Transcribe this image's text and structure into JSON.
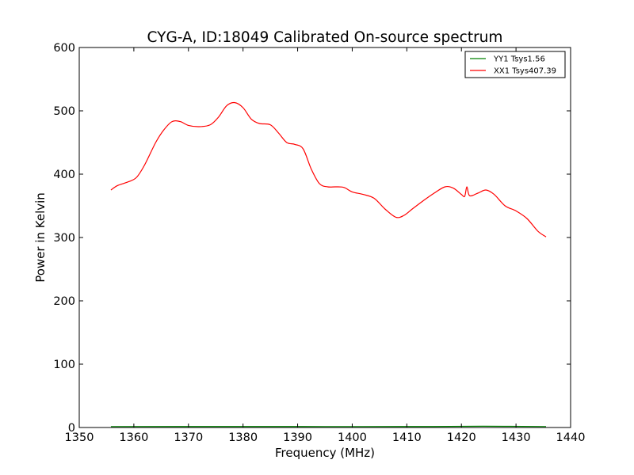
{
  "colors": {
    "xx1": "#ff0000",
    "yy1": "#008000",
    "axes": "#000000",
    "background": "#ffffff"
  },
  "chart_data": {
    "type": "line",
    "title": "CYG-A, ID:18049 Calibrated On-source spectrum",
    "xlabel": "Frequency (MHz)",
    "ylabel": "Power in Kelvin",
    "xlim": [
      1350,
      1440
    ],
    "ylim": [
      0,
      600
    ],
    "xticks": [
      "1350",
      "1360",
      "1370",
      "1380",
      "1390",
      "1400",
      "1410",
      "1420",
      "1430",
      "1440"
    ],
    "yticks": [
      "0",
      "100",
      "200",
      "300",
      "400",
      "500",
      "600"
    ],
    "grid": false,
    "legend_position": "top-right",
    "series": [
      {
        "name": "YY1 Tsys1.56",
        "color": "#008000",
        "x": [
          1355.8,
          1375,
          1395,
          1415,
          1424,
          1435.5
        ],
        "y": [
          1.5,
          1.6,
          1.5,
          1.6,
          2.0,
          1.5
        ]
      },
      {
        "name": "XX1 Tsys407.39",
        "color": "#ff0000",
        "x": [
          1355.8,
          1357,
          1359,
          1360.5,
          1362,
          1364,
          1365.5,
          1367,
          1368.5,
          1370,
          1372,
          1374,
          1375.5,
          1377,
          1378.5,
          1380,
          1381.5,
          1383,
          1385,
          1386.5,
          1388,
          1389.5,
          1391,
          1392.5,
          1394,
          1395.5,
          1397,
          1398.5,
          1400,
          1402,
          1404,
          1406,
          1408,
          1409.5,
          1411,
          1413,
          1415,
          1417,
          1418.5,
          1420,
          1420.6,
          1421,
          1421.5,
          1423,
          1424.5,
          1426,
          1428,
          1430,
          1432,
          1434,
          1435.5
        ],
        "y": [
          375,
          382,
          388,
          395,
          415,
          450,
          470,
          483,
          483,
          477,
          475,
          478,
          490,
          508,
          513,
          505,
          487,
          480,
          478,
          465,
          450,
          447,
          440,
          408,
          385,
          380,
          380,
          379,
          372,
          368,
          362,
          345,
          332,
          335,
          345,
          358,
          370,
          380,
          378,
          368,
          365,
          380,
          366,
          370,
          375,
          368,
          350,
          342,
          330,
          310,
          301
        ]
      }
    ]
  }
}
